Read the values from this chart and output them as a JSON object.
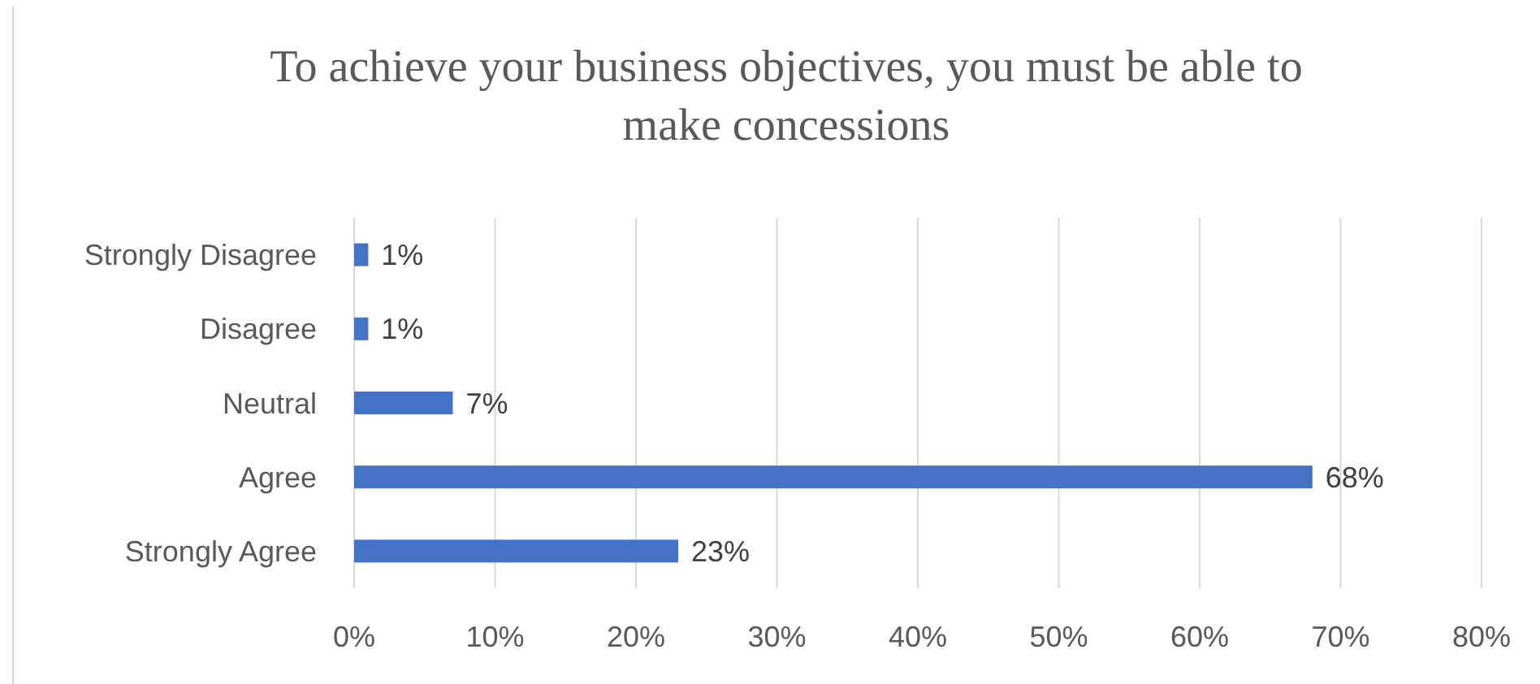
{
  "chart_data": {
    "type": "bar",
    "orientation": "horizontal",
    "title": "To achieve your business objectives, you must be able to make concessions",
    "categories": [
      "Strongly Disagree",
      "Disagree",
      "Neutral",
      "Agree",
      "Strongly Agree"
    ],
    "values": [
      1,
      1,
      7,
      68,
      23
    ],
    "value_labels": [
      "1%",
      "1%",
      "7%",
      "68%",
      "23%"
    ],
    "color": "#4472c4",
    "xlim": [
      0,
      80
    ],
    "xticks": [
      {
        "value": 0,
        "label": "0%"
      },
      {
        "value": 10,
        "label": "10%"
      },
      {
        "value": 20,
        "label": "20%"
      },
      {
        "value": 30,
        "label": "30%"
      },
      {
        "value": 40,
        "label": "40%"
      },
      {
        "value": 50,
        "label": "50%"
      },
      {
        "value": 60,
        "label": "60%"
      },
      {
        "value": 70,
        "label": "70%"
      },
      {
        "value": 80,
        "label": "80%"
      }
    ],
    "grid": "x"
  }
}
